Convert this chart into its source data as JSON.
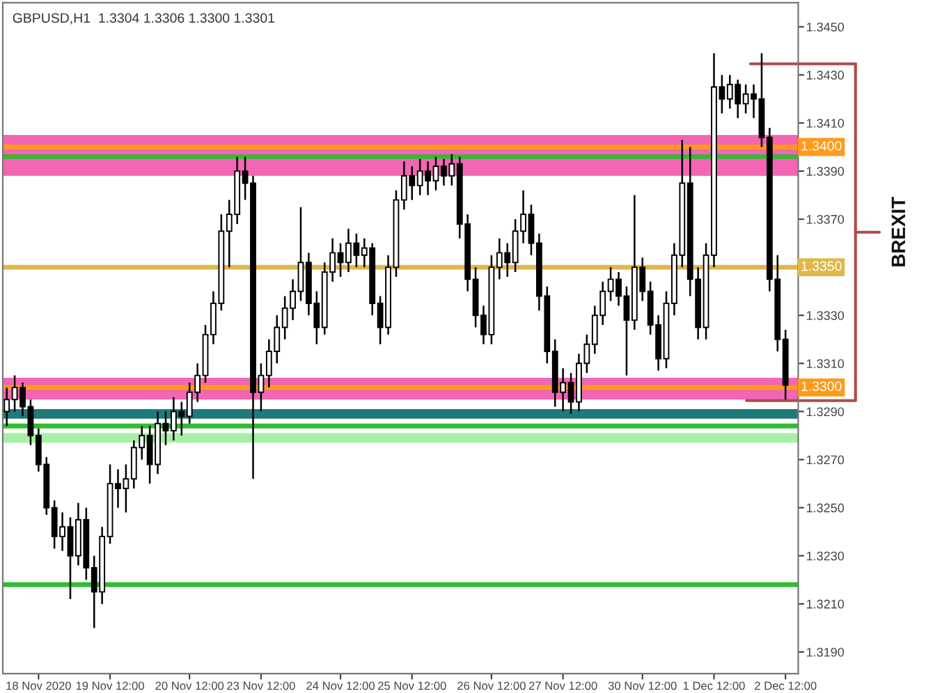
{
  "chart_data": {
    "type": "candlestick",
    "title": "GBPUSD,H1  1.3304 1.3306 1.3300 1.3301",
    "categories": [
      null,
      null,
      null,
      null,
      "18 Nov 2020",
      null,
      null,
      null,
      null,
      null,
      null,
      null,
      null,
      "19 Nov 12:00",
      null,
      null,
      null,
      null,
      null,
      null,
      null,
      null,
      null,
      "20 Nov 12:00",
      null,
      null,
      null,
      null,
      null,
      null,
      null,
      null,
      "23 Nov 12:00",
      null,
      null,
      null,
      null,
      null,
      null,
      null,
      null,
      null,
      "24 Nov 12:00",
      null,
      null,
      null,
      null,
      null,
      null,
      null,
      null,
      "25 Nov 12:00",
      null,
      null,
      null,
      null,
      null,
      null,
      null,
      null,
      null,
      "26 Nov 12:00",
      null,
      null,
      null,
      null,
      null,
      null,
      null,
      null,
      "27 Nov 12:00",
      null,
      null,
      null,
      null,
      null,
      null,
      null,
      null,
      null,
      "30 Nov 12:00",
      null,
      null,
      null,
      null,
      null,
      null,
      null,
      null,
      "1 Dec 12:00",
      null,
      null,
      null,
      null,
      null,
      null,
      null,
      null,
      "2 Dec 12:00"
    ],
    "color": "#000000",
    "ohlc": [
      [
        1.329,
        1.33,
        1.3284,
        1.3295
      ],
      [
        1.3295,
        1.3305,
        1.329,
        1.33
      ],
      [
        1.33,
        1.3302,
        1.3288,
        1.3292
      ],
      [
        1.3292,
        1.3295,
        1.3276,
        1.328
      ],
      [
        1.328,
        1.3283,
        1.3265,
        1.3268
      ],
      [
        1.3268,
        1.3271,
        1.3247,
        1.325
      ],
      [
        1.325,
        1.3253,
        1.3233,
        1.3238
      ],
      [
        1.3238,
        1.3248,
        1.3232,
        1.3242
      ],
      [
        1.3242,
        1.3246,
        1.3212,
        1.323
      ],
      [
        1.323,
        1.3252,
        1.3226,
        1.3245
      ],
      [
        1.3245,
        1.325,
        1.322,
        1.3225
      ],
      [
        1.3225,
        1.323,
        1.32,
        1.3215
      ],
      [
        1.3215,
        1.3242,
        1.321,
        1.3238
      ],
      [
        1.3238,
        1.3268,
        1.3235,
        1.326
      ],
      [
        1.326,
        1.3266,
        1.325,
        1.3258
      ],
      [
        1.3258,
        1.3268,
        1.3248,
        1.3262
      ],
      [
        1.3262,
        1.3278,
        1.3258,
        1.3275
      ],
      [
        1.3275,
        1.3284,
        1.327,
        1.328
      ],
      [
        1.328,
        1.3284,
        1.326,
        1.3268
      ],
      [
        1.3268,
        1.329,
        1.3264,
        1.3285
      ],
      [
        1.3285,
        1.329,
        1.3276,
        1.3282
      ],
      [
        1.3282,
        1.3296,
        1.3278,
        1.329
      ],
      [
        1.329,
        1.3294,
        1.328,
        1.3288
      ],
      [
        1.3288,
        1.3302,
        1.3285,
        1.3298
      ],
      [
        1.3298,
        1.331,
        1.3294,
        1.3305
      ],
      [
        1.3305,
        1.3326,
        1.3302,
        1.3322
      ],
      [
        1.3322,
        1.334,
        1.3318,
        1.3335
      ],
      [
        1.3335,
        1.3372,
        1.3332,
        1.3365
      ],
      [
        1.3365,
        1.3378,
        1.335,
        1.3372
      ],
      [
        1.3372,
        1.3396,
        1.3368,
        1.339
      ],
      [
        1.339,
        1.3396,
        1.3378,
        1.3385
      ],
      [
        1.3385,
        1.3388,
        1.3262,
        1.3298
      ],
      [
        1.3298,
        1.331,
        1.329,
        1.3305
      ],
      [
        1.3305,
        1.332,
        1.33,
        1.3315
      ],
      [
        1.3315,
        1.333,
        1.331,
        1.3325
      ],
      [
        1.3325,
        1.3338,
        1.332,
        1.3333
      ],
      [
        1.3333,
        1.3345,
        1.3328,
        1.334
      ],
      [
        1.334,
        1.3375,
        1.3336,
        1.3352
      ],
      [
        1.3352,
        1.3356,
        1.333,
        1.3335
      ],
      [
        1.3335,
        1.334,
        1.3318,
        1.3325
      ],
      [
        1.3325,
        1.3352,
        1.3322,
        1.3348
      ],
      [
        1.3348,
        1.3362,
        1.3344,
        1.3356
      ],
      [
        1.3356,
        1.336,
        1.3346,
        1.3352
      ],
      [
        1.3352,
        1.3366,
        1.3348,
        1.336
      ],
      [
        1.336,
        1.3364,
        1.335,
        1.3355
      ],
      [
        1.3355,
        1.3362,
        1.335,
        1.3358
      ],
      [
        1.3358,
        1.336,
        1.333,
        1.3335
      ],
      [
        1.3335,
        1.3338,
        1.3318,
        1.3325
      ],
      [
        1.3325,
        1.3355,
        1.3322,
        1.335
      ],
      [
        1.335,
        1.3382,
        1.3346,
        1.3378
      ],
      [
        1.3378,
        1.3394,
        1.3374,
        1.3388
      ],
      [
        1.3388,
        1.3392,
        1.3378,
        1.3384
      ],
      [
        1.3384,
        1.3395,
        1.338,
        1.339
      ],
      [
        1.339,
        1.3394,
        1.338,
        1.3386
      ],
      [
        1.3386,
        1.3396,
        1.3382,
        1.3392
      ],
      [
        1.3392,
        1.3395,
        1.3384,
        1.3388
      ],
      [
        1.3388,
        1.3397,
        1.3384,
        1.3393
      ],
      [
        1.3393,
        1.3396,
        1.3362,
        1.3368
      ],
      [
        1.3368,
        1.3372,
        1.334,
        1.3345
      ],
      [
        1.3345,
        1.335,
        1.3325,
        1.333
      ],
      [
        1.333,
        1.3334,
        1.3318,
        1.3322
      ],
      [
        1.3322,
        1.3355,
        1.3318,
        1.335
      ],
      [
        1.335,
        1.3362,
        1.3345,
        1.3356
      ],
      [
        1.3356,
        1.336,
        1.3346,
        1.3352
      ],
      [
        1.3352,
        1.337,
        1.3348,
        1.3365
      ],
      [
        1.3365,
        1.3382,
        1.336,
        1.3372
      ],
      [
        1.3372,
        1.3376,
        1.3355,
        1.336
      ],
      [
        1.336,
        1.3364,
        1.3332,
        1.3338
      ],
      [
        1.3338,
        1.3342,
        1.331,
        1.3315
      ],
      [
        1.3315,
        1.332,
        1.3292,
        1.3298
      ],
      [
        1.3298,
        1.3308,
        1.329,
        1.3302
      ],
      [
        1.3302,
        1.3306,
        1.3289,
        1.3294
      ],
      [
        1.3294,
        1.3314,
        1.329,
        1.331
      ],
      [
        1.331,
        1.3322,
        1.3306,
        1.3318
      ],
      [
        1.3318,
        1.3334,
        1.3314,
        1.333
      ],
      [
        1.333,
        1.3344,
        1.3326,
        1.334
      ],
      [
        1.334,
        1.335,
        1.3336,
        1.3345
      ],
      [
        1.3345,
        1.3348,
        1.3334,
        1.3338
      ],
      [
        1.3338,
        1.3342,
        1.3305,
        1.3328
      ],
      [
        1.3328,
        1.338,
        1.3324,
        1.335
      ],
      [
        1.335,
        1.3354,
        1.3336,
        1.334
      ],
      [
        1.334,
        1.3344,
        1.3322,
        1.3326
      ],
      [
        1.3326,
        1.333,
        1.3307,
        1.3312
      ],
      [
        1.3312,
        1.334,
        1.3308,
        1.3335
      ],
      [
        1.3335,
        1.336,
        1.333,
        1.3355
      ],
      [
        1.3355,
        1.3403,
        1.335,
        1.3385
      ],
      [
        1.3385,
        1.34,
        1.3338,
        1.3345
      ],
      [
        1.3345,
        1.335,
        1.332,
        1.3325
      ],
      [
        1.3325,
        1.336,
        1.332,
        1.3355
      ],
      [
        1.3355,
        1.3439,
        1.335,
        1.3425
      ],
      [
        1.3425,
        1.343,
        1.3414,
        1.342
      ],
      [
        1.342,
        1.343,
        1.3416,
        1.3426
      ],
      [
        1.3426,
        1.3428,
        1.3412,
        1.3418
      ],
      [
        1.3418,
        1.3426,
        1.3414,
        1.3422
      ],
      [
        1.3422,
        1.3426,
        1.3412,
        1.342
      ],
      [
        1.342,
        1.3439,
        1.34,
        1.3404
      ],
      [
        1.3404,
        1.3408,
        1.334,
        1.3345
      ],
      [
        1.3345,
        1.3355,
        1.3315,
        1.332
      ],
      [
        1.332,
        1.3324,
        1.3295,
        1.3301
      ]
    ],
    "ylim": [
      1.3181,
      1.346
    ],
    "yticks": [
      {
        "value": 1.345,
        "label": "1.3450"
      },
      {
        "value": 1.343,
        "label": "1.3430"
      },
      {
        "value": 1.341,
        "label": "1.3410"
      },
      {
        "value": 1.339,
        "label": "1.3390"
      },
      {
        "value": 1.337,
        "label": "1.3370"
      },
      {
        "value": 1.333,
        "label": "1.3330"
      },
      {
        "value": 1.331,
        "label": "1.3310"
      },
      {
        "value": 1.329,
        "label": "1.3290"
      },
      {
        "value": 1.327,
        "label": "1.3270"
      },
      {
        "value": 1.325,
        "label": "1.3250"
      },
      {
        "value": 1.323,
        "label": "1.3230"
      },
      {
        "value": 1.321,
        "label": "1.3210"
      },
      {
        "value": 1.319,
        "label": "1.3190"
      }
    ],
    "bands": [
      {
        "axis": "y",
        "from": 1.3388,
        "to": 1.3405,
        "color": "#f266b3"
      },
      {
        "axis": "y",
        "from": 1.3295,
        "to": 1.3304,
        "color": "#f266b3"
      },
      {
        "axis": "y",
        "from": 1.3287,
        "to": 1.3291,
        "color": "#1f7a7a"
      },
      {
        "axis": "y",
        "from": 1.3277,
        "to": 1.3281,
        "color": "#a6f0a6"
      }
    ],
    "ref_lines": [
      {
        "axis": "y",
        "value": 1.3396,
        "color": "#33bb33"
      },
      {
        "axis": "y",
        "value": 1.34,
        "label": "1.3400",
        "color": "#ff9a1a"
      },
      {
        "axis": "y",
        "value": 1.335,
        "label": "1.3350",
        "color": "#e0b84a"
      },
      {
        "axis": "y",
        "value": 1.33,
        "label": "1.3300",
        "color": "#ff9a1a"
      },
      {
        "axis": "y",
        "value": 1.3284,
        "color": "#33bb33"
      },
      {
        "axis": "y",
        "value": 1.3218,
        "color": "#33bb33"
      }
    ],
    "annotations": [
      "BREXIT"
    ],
    "grid": false,
    "legend": false
  }
}
